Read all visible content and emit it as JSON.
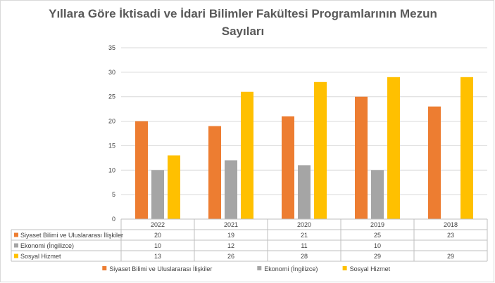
{
  "chart_data": {
    "type": "bar",
    "title": "Yıllara Göre İktisadi ve İdari Bilimler Fakültesi Programlarının Mezun Sayıları",
    "title_lines": [
      "Yıllara Göre İktisadi ve İdari Bilimler Fakültesi Programlarının Mezun",
      "Sayıları"
    ],
    "categories": [
      "2022",
      "2021",
      "2020",
      "2019",
      "2018"
    ],
    "series": [
      {
        "name": "Siyaset Bilimi ve Uluslararası İlişkiler",
        "color": "#ED7D31",
        "values": [
          20,
          19,
          21,
          25,
          23
        ]
      },
      {
        "name": "Ekonomi (İngilizce)",
        "color": "#A5A5A5",
        "values": [
          10,
          12,
          11,
          10,
          null
        ]
      },
      {
        "name": "Sosyal Hizmet",
        "color": "#FFC000",
        "values": [
          13,
          26,
          28,
          29,
          29
        ]
      }
    ],
    "ylim": [
      0,
      35
    ],
    "yticks": [
      0,
      5,
      10,
      15,
      20,
      25,
      30,
      35
    ],
    "grid": true,
    "data_table": true,
    "legend_position": "bottom",
    "xlabel": "",
    "ylabel": ""
  }
}
